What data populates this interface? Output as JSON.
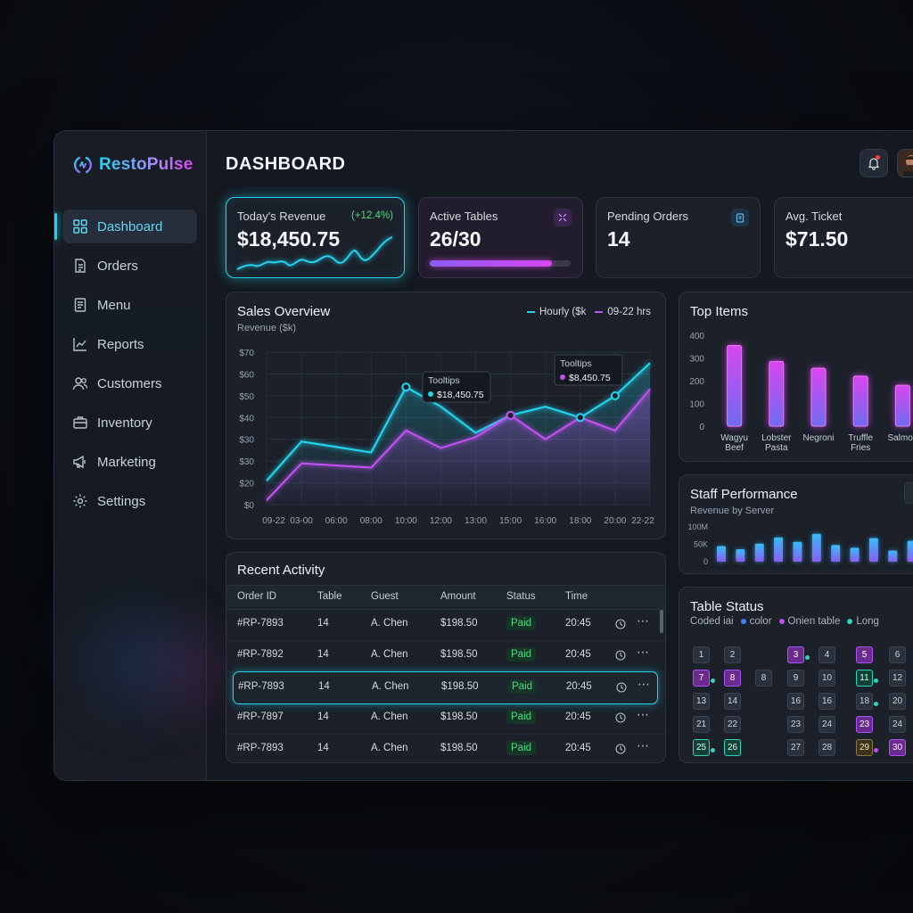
{
  "app": {
    "name": "RestoPulse"
  },
  "sidebar": {
    "items": [
      {
        "label": "Dashboard",
        "icon": "grid-icon",
        "active": true
      },
      {
        "label": "Orders",
        "icon": "document-icon"
      },
      {
        "label": "Menu",
        "icon": "menu-book-icon"
      },
      {
        "label": "Reports",
        "icon": "chart-icon"
      },
      {
        "label": "Customers",
        "icon": "users-icon"
      },
      {
        "label": "Inventory",
        "icon": "briefcase-icon"
      },
      {
        "label": "Marketing",
        "icon": "megaphone-icon"
      },
      {
        "label": "Settings",
        "icon": "gear-icon"
      }
    ]
  },
  "header": {
    "title": "DASHBOARD"
  },
  "kpis": {
    "revenue": {
      "label": "Today's Revenue",
      "value": "$18,450.75",
      "delta": "(+12.4%)"
    },
    "tables": {
      "label": "Active Tables",
      "value": "26/30",
      "progress": 0.87
    },
    "pending": {
      "label": "Pending Orders",
      "value": "14"
    },
    "ticket": {
      "label": "Avg. Ticket",
      "value": "$71.50"
    }
  },
  "colors": {
    "cyan": "#22d3ee",
    "purple": "#c050f0",
    "green": "#4ade80"
  },
  "sales": {
    "title": "Sales Overview",
    "subtitle": "Revenue ($k)",
    "legend": [
      "Hourly ($k",
      "09-22 hrs"
    ],
    "tooltip1": {
      "title": "Tooltips",
      "value": "$18,450.75"
    },
    "tooltip2": {
      "title": "Tooltips",
      "value": "$8,450.75"
    },
    "chart_data": {
      "type": "line",
      "x": [
        "09-22",
        "03-00",
        "06:00",
        "08:00",
        "10:00",
        "12:00",
        "13:00",
        "15:00",
        "16:00",
        "18:00",
        "20:00",
        "22-22"
      ],
      "yticks": [
        "$0",
        "$20",
        "$30",
        "$30",
        "$40",
        "$50",
        "$60",
        "$70"
      ],
      "series": [
        {
          "name": "Hourly ($k",
          "values": [
            11,
            29,
            null,
            24,
            54,
            45,
            33,
            41,
            45,
            40,
            50,
            65
          ]
        },
        {
          "name": "09-22 hrs",
          "values": [
            2,
            19,
            null,
            17,
            34,
            26,
            31,
            41,
            30,
            40,
            34,
            53
          ]
        }
      ],
      "ylim": [
        0,
        70
      ]
    }
  },
  "top_items": {
    "title": "Top Items",
    "chart_data": {
      "type": "bar",
      "categories": [
        "Wagyu Beef",
        "Lobster Pasta",
        "Negroni",
        "Truffle Fries",
        "Salmon"
      ],
      "values": [
        355,
        285,
        255,
        220,
        180
      ],
      "yticks": [
        "0",
        "100",
        "200",
        "300",
        "400"
      ],
      "ylim": [
        0,
        400
      ]
    }
  },
  "staff": {
    "title": "Staff Performance",
    "subtitle": "Revenue by Server",
    "chart_data": {
      "type": "bar",
      "yticks": [
        "0",
        "50K",
        "100M"
      ],
      "values": [
        45,
        36,
        52,
        70,
        57,
        80,
        48,
        40,
        68,
        32,
        60
      ]
    }
  },
  "activity": {
    "title": "Recent Activity",
    "columns": [
      "Order ID",
      "Table",
      "Guest",
      "Amount",
      "Status",
      "Time"
    ],
    "rows": [
      [
        "#RP-7893",
        "14",
        "A. Chen",
        "$198.50",
        "Paid",
        "20:45"
      ],
      [
        "#RP-7892",
        "14",
        "A. Chen",
        "$198.50",
        "Paid",
        "20:45"
      ],
      [
        "#RP-7893",
        "14",
        "A. Chen",
        "$198.50",
        "Paid",
        "20:45"
      ],
      [
        "#RP-7897",
        "14",
        "A. Chen",
        "$198.50",
        "Paid",
        "20:45"
      ],
      [
        "#RP-7893",
        "14",
        "A. Chen",
        "$198.50",
        "Paid",
        "20:45"
      ]
    ]
  },
  "table_status": {
    "title": "Table Status",
    "legend": [
      {
        "label": "Coded iai",
        "color": ""
      },
      {
        "label": "color",
        "color": "#3b82f6"
      },
      {
        "label": "Onien table",
        "color": "#c050f0"
      },
      {
        "label": "Long",
        "color": "#2dd4bf"
      }
    ],
    "cells": [
      {
        "n": "1",
        "s": ""
      },
      {
        "n": "2",
        "s": ""
      },
      {
        "n": "3",
        "s": "p"
      },
      {
        "n": "4",
        "s": ""
      },
      {
        "n": "5",
        "s": "p"
      },
      {
        "n": "6",
        "s": ""
      },
      {
        "n": "7",
        "s": "p"
      },
      {
        "n": "8",
        "s": "p"
      },
      {
        "n": "8",
        "s": ""
      },
      {
        "n": "9",
        "s": ""
      },
      {
        "n": "10",
        "s": ""
      },
      {
        "n": "11",
        "s": "g"
      },
      {
        "n": "12",
        "s": ""
      },
      {
        "n": "13",
        "s": ""
      },
      {
        "n": "14",
        "s": ""
      },
      {
        "n": "16",
        "s": ""
      },
      {
        "n": "16",
        "s": ""
      },
      {
        "n": "18",
        "s": ""
      },
      {
        "n": "20",
        "s": ""
      },
      {
        "n": "21",
        "s": ""
      },
      {
        "n": "22",
        "s": ""
      },
      {
        "n": "23",
        "s": ""
      },
      {
        "n": "24",
        "s": ""
      },
      {
        "n": "23",
        "s": "p"
      },
      {
        "n": "24",
        "s": ""
      },
      {
        "n": "25",
        "s": "g"
      },
      {
        "n": "26",
        "s": "g"
      },
      {
        "n": "27",
        "s": ""
      },
      {
        "n": "28",
        "s": ""
      },
      {
        "n": "29",
        "s": "y"
      },
      {
        "n": "30",
        "s": "p"
      }
    ]
  }
}
